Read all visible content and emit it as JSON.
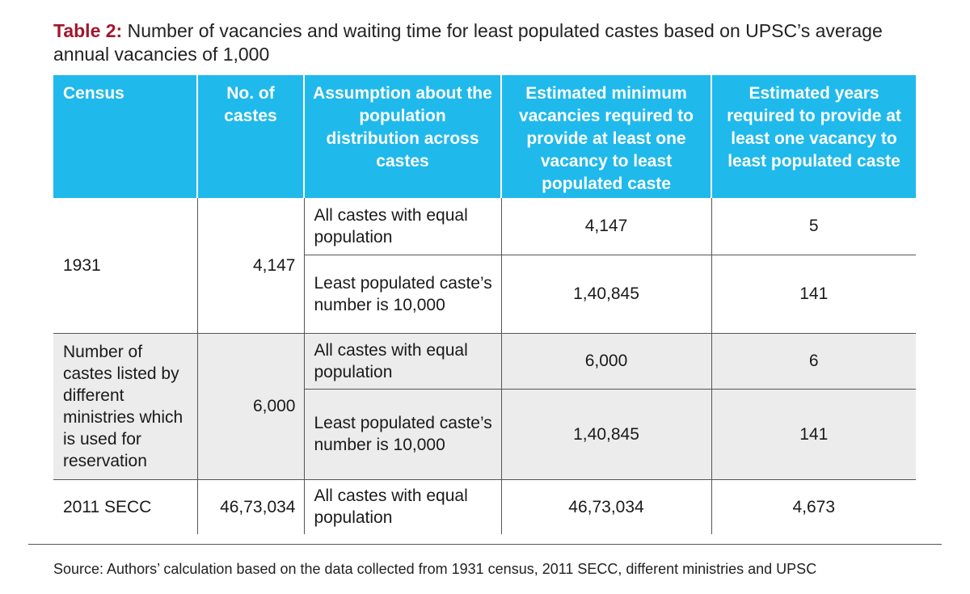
{
  "title": {
    "label": "Table 2:",
    "text": "Number of vacancies and waiting time for least populated castes based on UPSC’s average annual vacancies of 1,000"
  },
  "table": {
    "headers": [
      "Census",
      "No. of castes",
      "Assumption about the population distribution across castes",
      "Estimated minimum vacancies required to provide at least one vacancy to least populated caste",
      "Estimated years required to provide at least one vacancy to least populated caste"
    ],
    "groups": [
      {
        "census": "1931",
        "castes": "4,147",
        "rows": [
          {
            "assumption": "All castes with equal population",
            "vacancies": "4,147",
            "years": "5"
          },
          {
            "assumption": "Least populated caste’s number is 10,000",
            "vacancies": "1,40,845",
            "years": "141"
          }
        ]
      },
      {
        "census": "Number of castes listed by different ministries which is used for reservation",
        "castes": "6,000",
        "rows": [
          {
            "assumption": "All castes with equal population",
            "vacancies": "6,000",
            "years": "6"
          },
          {
            "assumption": "Least populated caste’s number is 10,000",
            "vacancies": "1,40,845",
            "years": "141"
          }
        ]
      },
      {
        "census": "2011 SECC",
        "castes": "46,73,034",
        "rows": [
          {
            "assumption": "All castes with equal population",
            "vacancies": "46,73,034",
            "years": "4,673"
          }
        ]
      }
    ]
  },
  "source": "Source: Authors’ calculation based on the data collected from 1931 census, 2011 SECC, different ministries and UPSC"
}
